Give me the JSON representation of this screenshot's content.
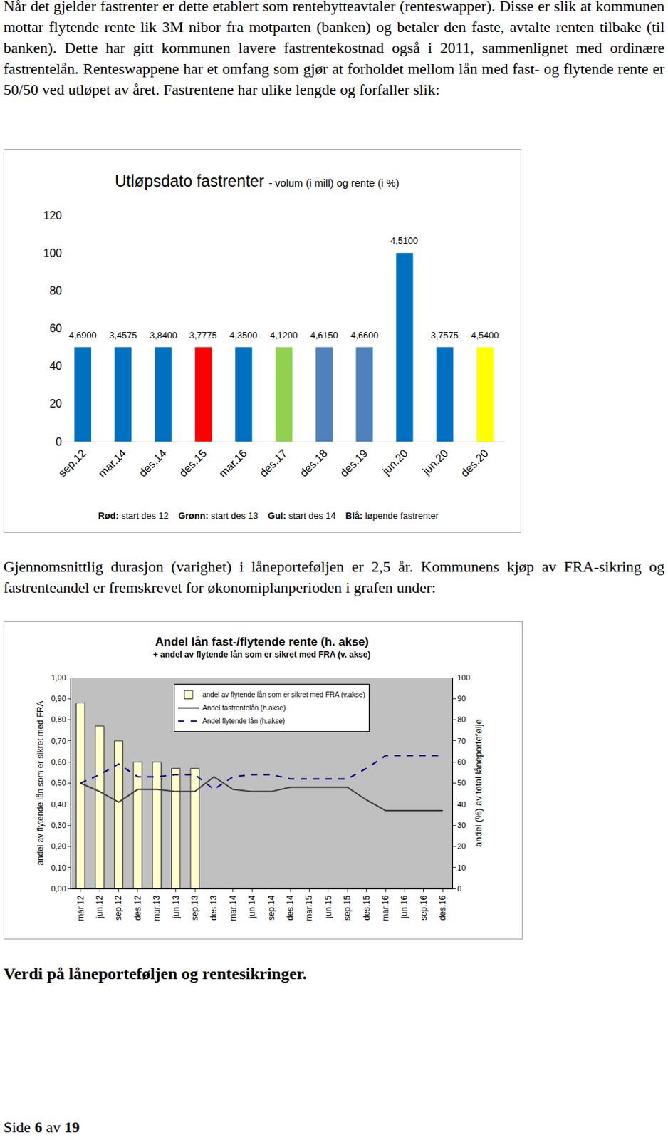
{
  "document": {
    "paragraphs": [
      "Når det gjelder fastrenter er dette etablert som rentebytteavtaler (renteswapper). Disse er slik at kommunen mottar flytende rente lik 3M nibor fra motparten (banken) og betaler den faste, avtalte renten tilbake (til banken). Dette har gitt kommunen lavere fastrentekostnad også i 2011, sammenlignet med ordinære fastrentelån. Renteswappene har et omfang som gjør at forholdet mellom lån med fast- og flytende rente er 50/50 ved utløpet av året. Fastrentene har ulike lengde og forfaller slik:",
      "Gjennomsnittlig durasjon (varighet) i låneporteføljen er 2,5 år. Kommunens kjøp av FRA-sikring og fastrenteandel er fremskrevet for økonomiplanperioden i grafen under:"
    ],
    "heading": "Verdi på låneporteføljen og rentesikringer.",
    "footer": "Side 6 av 19"
  },
  "chart_data": [
    {
      "type": "bar",
      "title": "Utløpsdato fastrenter",
      "subtitle": "- volum (i mill) og rente (i %)",
      "categories": [
        "sep.12",
        "mar.14",
        "des.14",
        "des.15",
        "mar.16",
        "des.17",
        "des.18",
        "des.19",
        "jun.20",
        "jun.20",
        "des.20"
      ],
      "values": [
        50,
        50,
        50,
        50,
        50,
        50,
        50,
        50,
        100,
        50,
        50
      ],
      "colors": [
        "#0070C0",
        "#0070C0",
        "#0070C0",
        "#FF0000",
        "#0070C0",
        "#92D050",
        "#4F81BD",
        "#4F81BD",
        "#0070C0",
        "#0070C0",
        "#FFFF00"
      ],
      "rate_labels": [
        "4,6900",
        "3,4575",
        "3,8400",
        "3,7775",
        "4,3500",
        "4,1200",
        "4,6150",
        "4,6600",
        "4,5100",
        "3,7575",
        "4,5400"
      ],
      "ylim": [
        0,
        120
      ],
      "yticks": [
        0,
        20,
        40,
        60,
        80,
        100,
        120
      ],
      "grid": false,
      "legend_note": [
        {
          "label": "Rød:",
          "text": "start des 12"
        },
        {
          "label": "Grønn:",
          "text": "start des 13"
        },
        {
          "label": "Gul:",
          "text": "start des 14"
        },
        {
          "label": "Blå:",
          "text": "løpende fastrenter"
        }
      ]
    },
    {
      "type": "bar",
      "title": "Andel lån fast-/flytende rente (h. akse)",
      "subtitle": "+ andel av flytende lån som er sikret med FRA (v. akse)",
      "categories": [
        "mar.12",
        "jun.12",
        "sep.12",
        "des.12",
        "mar.13",
        "jun.13",
        "sep.13",
        "des.13",
        "mar.14",
        "jun.14",
        "sep.14",
        "des.14",
        "mar.15",
        "jun.15",
        "sep.15",
        "des.15",
        "mar.16",
        "jun.16",
        "sep.16",
        "des.16"
      ],
      "series": [
        {
          "name": "andel av flytende lån som er sikret med FRA (v.akse)",
          "type": "bar",
          "color": "#FFFFCC",
          "values": [
            0.88,
            0.77,
            0.7,
            0.6,
            0.6,
            0.57,
            0.57,
            null,
            null,
            null,
            null,
            null,
            null,
            null,
            null,
            null,
            null,
            null,
            null,
            null
          ]
        },
        {
          "name": "Andel fastrentelån (h.akse)",
          "type": "line",
          "color": "#404040",
          "line_style": "solid",
          "axis": "y2",
          "values": [
            50,
            46,
            41,
            47,
            47,
            46,
            46,
            53,
            47,
            46,
            46,
            48,
            48,
            48,
            48,
            42,
            37,
            37,
            37,
            37
          ]
        },
        {
          "name": "Andel flytende lån (h.akse)",
          "type": "line",
          "color": "#000080",
          "line_style": "dash",
          "axis": "y2",
          "values": [
            50,
            54,
            59,
            53,
            53,
            54,
            54,
            47,
            53,
            54,
            54,
            52,
            52,
            52,
            52,
            57,
            63,
            63,
            63,
            63
          ]
        }
      ],
      "ylabel": "andel av flytende lån som er sikret med FRA",
      "y2label": "andel (%) av total låneportefølje",
      "ylim": [
        0,
        1
      ],
      "yticks": [
        {
          "value": 0,
          "label": "0,00"
        },
        {
          "value": 0.1,
          "label": "0,10"
        },
        {
          "value": 0.2,
          "label": "0,20"
        },
        {
          "value": 0.3,
          "label": "0,30"
        },
        {
          "value": 0.4,
          "label": "0,40"
        },
        {
          "value": 0.5,
          "label": "0,50"
        },
        {
          "value": 0.6,
          "label": "0,60"
        },
        {
          "value": 0.7,
          "label": "0,70"
        },
        {
          "value": 0.8,
          "label": "0,80"
        },
        {
          "value": 0.9,
          "label": "0,90"
        },
        {
          "value": 1,
          "label": "1,00"
        }
      ],
      "y2lim": [
        0,
        100
      ],
      "y2ticks": [
        0,
        10,
        20,
        30,
        40,
        50,
        60,
        70,
        80,
        90,
        100
      ],
      "grid": false,
      "legend": "top"
    }
  ]
}
